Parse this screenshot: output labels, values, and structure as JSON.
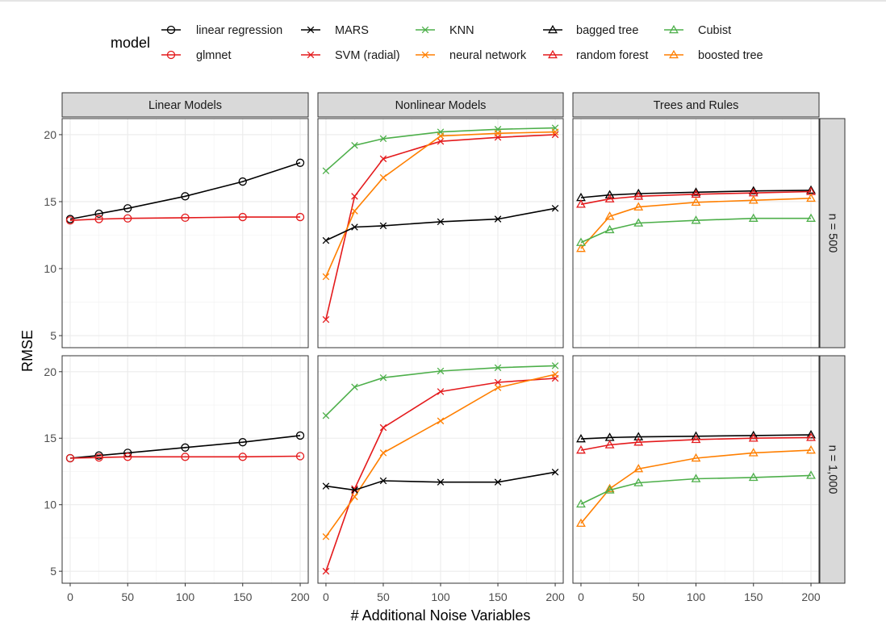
{
  "colors": {
    "black": "#000000",
    "red": "#E41A1C",
    "green": "#4DAF4A",
    "orange": "#FF7F00"
  },
  "chart_data": {
    "type": "line",
    "ylabel": "RMSE",
    "xlabel": "# Additional Noise Variables",
    "legend_title": "model",
    "legend_position": "top",
    "grid": true,
    "xlim": [
      -7,
      207
    ],
    "ylim": [
      4.1,
      21.2
    ],
    "x_ticks": [
      0,
      50,
      100,
      150,
      200
    ],
    "y_ticks": [
      5,
      10,
      15,
      20
    ],
    "x": [
      0,
      25,
      50,
      100,
      150,
      200
    ],
    "facet_columns": [
      "Linear Models",
      "Nonlinear Models",
      "Trees and Rules"
    ],
    "facet_rows": [
      "n = 500",
      "n = 1,000"
    ],
    "legend": [
      {
        "name": "linear regression",
        "color": "black",
        "marker": "circle"
      },
      {
        "name": "glmnet",
        "color": "red",
        "marker": "circle"
      },
      {
        "name": "MARS",
        "color": "black",
        "marker": "x"
      },
      {
        "name": "SVM (radial)",
        "color": "red",
        "marker": "x"
      },
      {
        "name": "KNN",
        "color": "green",
        "marker": "x"
      },
      {
        "name": "neural network",
        "color": "orange",
        "marker": "x"
      },
      {
        "name": "bagged tree",
        "color": "black",
        "marker": "triangle"
      },
      {
        "name": "random forest",
        "color": "red",
        "marker": "triangle"
      },
      {
        "name": "Cubist",
        "color": "green",
        "marker": "triangle"
      },
      {
        "name": "boosted tree",
        "color": "orange",
        "marker": "triangle"
      }
    ],
    "panels": [
      {
        "column": "Linear Models",
        "row": "n = 500",
        "series": [
          {
            "name": "linear regression",
            "values": [
              13.7,
              14.1,
              14.5,
              15.4,
              16.5,
              17.9
            ]
          },
          {
            "name": "glmnet",
            "values": [
              13.6,
              13.7,
              13.75,
              13.8,
              13.85,
              13.85
            ]
          }
        ]
      },
      {
        "column": "Nonlinear Models",
        "row": "n = 500",
        "series": [
          {
            "name": "KNN",
            "values": [
              17.3,
              19.2,
              19.7,
              20.2,
              20.4,
              20.5
            ]
          },
          {
            "name": "SVM (radial)",
            "values": [
              6.2,
              15.4,
              18.2,
              19.5,
              19.8,
              20.0
            ]
          },
          {
            "name": "neural network",
            "values": [
              9.4,
              14.3,
              16.8,
              19.9,
              20.1,
              20.2
            ]
          },
          {
            "name": "MARS",
            "values": [
              12.1,
              13.1,
              13.2,
              13.5,
              13.7,
              14.5
            ]
          }
        ]
      },
      {
        "column": "Trees and Rules",
        "row": "n = 500",
        "series": [
          {
            "name": "bagged tree",
            "values": [
              15.3,
              15.5,
              15.6,
              15.7,
              15.8,
              15.85
            ]
          },
          {
            "name": "random forest",
            "values": [
              14.8,
              15.2,
              15.4,
              15.55,
              15.65,
              15.75
            ]
          },
          {
            "name": "boosted tree",
            "values": [
              11.5,
              13.9,
              14.6,
              14.95,
              15.1,
              15.25
            ]
          },
          {
            "name": "Cubist",
            "values": [
              11.95,
              12.9,
              13.4,
              13.6,
              13.75,
              13.75
            ]
          }
        ]
      },
      {
        "column": "Linear Models",
        "row": "n = 1,000",
        "series": [
          {
            "name": "linear regression",
            "values": [
              13.5,
              13.7,
              13.9,
              14.3,
              14.7,
              15.2
            ]
          },
          {
            "name": "glmnet",
            "values": [
              13.5,
              13.55,
              13.6,
              13.6,
              13.6,
              13.65
            ]
          }
        ]
      },
      {
        "column": "Nonlinear Models",
        "row": "n = 1,000",
        "series": [
          {
            "name": "KNN",
            "values": [
              16.7,
              18.85,
              19.55,
              20.05,
              20.3,
              20.45
            ]
          },
          {
            "name": "SVM (radial)",
            "values": [
              5.0,
              11.2,
              15.8,
              18.5,
              19.2,
              19.5
            ]
          },
          {
            "name": "neural network",
            "values": [
              7.6,
              10.6,
              13.9,
              16.3,
              18.8,
              19.8
            ]
          },
          {
            "name": "MARS",
            "values": [
              11.4,
              11.1,
              11.8,
              11.7,
              11.7,
              12.45
            ]
          }
        ]
      },
      {
        "column": "Trees and Rules",
        "row": "n = 1,000",
        "series": [
          {
            "name": "bagged tree",
            "values": [
              14.95,
              15.05,
              15.1,
              15.15,
              15.2,
              15.25
            ]
          },
          {
            "name": "random forest",
            "values": [
              14.1,
              14.5,
              14.7,
              14.9,
              15.0,
              15.05
            ]
          },
          {
            "name": "boosted tree",
            "values": [
              8.6,
              11.2,
              12.7,
              13.5,
              13.9,
              14.1
            ]
          },
          {
            "name": "Cubist",
            "values": [
              10.05,
              11.1,
              11.65,
              11.95,
              12.05,
              12.2
            ]
          }
        ]
      }
    ]
  }
}
